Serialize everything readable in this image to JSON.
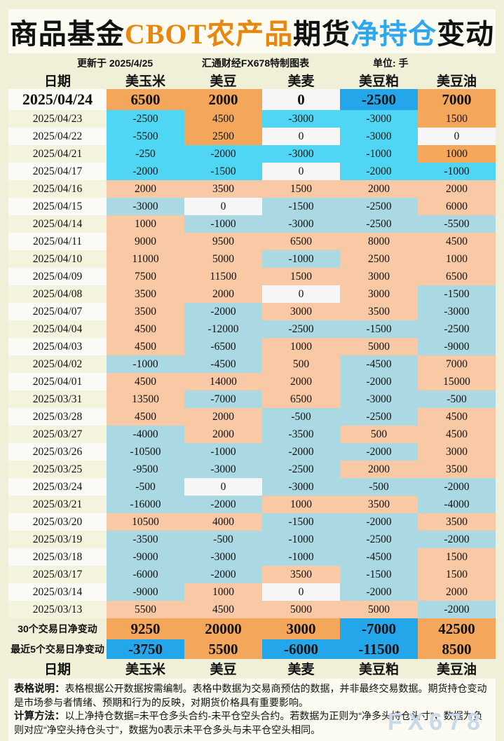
{
  "title": {
    "part1": "商品基金",
    "part2": "CBOT农产品",
    "part3": "期货",
    "part4": "净持仓",
    "part5": "变动"
  },
  "subtitle": {
    "updated": "更新于 2025/4/25",
    "source": "汇通财经FX678特制图表",
    "unit": "单位: 手"
  },
  "watermark": "FX678",
  "colors": {
    "page_bg": "#F0EFD8",
    "panel_bg": "#FBFBF2",
    "title_orange": "#E8860D",
    "title_blue": "#2EA7F2",
    "pos_strong": "#F4A65A",
    "neg_strong": "#23A7EA",
    "neg_bright": "#4FD6F5",
    "pos_soft": "#F8C9A4",
    "neg_soft": "#AAD8E3",
    "zero_bg": "#F6F6F6",
    "date_even": "#FAFAF6",
    "date_odd": "#F3F3DE",
    "watermark": "#C9D9EA"
  },
  "notes": {
    "line1_label": "表格说明：",
    "line1_text": "表格根据公开数据按需编制。表格中数据为交易商预估的数据，并非最终交易数据。期货持仓变动是市场参与者情绪、预期和行为的反映，对期货价格具有重要影响。",
    "line2_label": "计算方法：",
    "line2_text": "以上净持仓数据=未平仓多头合约-未平仓空头合约。若数据为正则为“净多头持仓头寸”，数据为负则对应“净空头持仓头寸”，数据为0表示未平仓多头与未平仓空头相同。"
  },
  "chart_data": {
    "type": "table",
    "title": "商品基金CBOT农产品期货净持仓变动",
    "unit": "手",
    "columns": [
      "日期",
      "美玉米",
      "美豆",
      "美麦",
      "美豆粕",
      "美豆油"
    ],
    "rows": [
      {
        "date": "2025/04/24",
        "values": [
          6500,
          2000,
          0,
          -2500,
          7000
        ]
      },
      {
        "date": "2025/04/23",
        "values": [
          -2500,
          4500,
          -3000,
          -3000,
          1500
        ]
      },
      {
        "date": "2025/04/22",
        "values": [
          -5500,
          2500,
          0,
          -3000,
          0
        ]
      },
      {
        "date": "2025/04/21",
        "values": [
          -250,
          -2000,
          -3000,
          -1000,
          1000
        ]
      },
      {
        "date": "2025/04/17",
        "values": [
          -2000,
          -1500,
          0,
          -2000,
          -1000
        ]
      },
      {
        "date": "2025/04/16",
        "values": [
          2000,
          3500,
          1500,
          2000,
          2000
        ]
      },
      {
        "date": "2025/04/15",
        "values": [
          -3000,
          0,
          -1500,
          -2500,
          6000
        ]
      },
      {
        "date": "2025/04/14",
        "values": [
          1000,
          -1000,
          -3000,
          -2500,
          -5500
        ]
      },
      {
        "date": "2025/04/11",
        "values": [
          9000,
          9500,
          6500,
          8000,
          4500
        ]
      },
      {
        "date": "2025/04/10",
        "values": [
          11000,
          5000,
          -1000,
          2500,
          1000
        ]
      },
      {
        "date": "2025/04/09",
        "values": [
          7500,
          11500,
          1500,
          3000,
          6500
        ]
      },
      {
        "date": "2025/04/08",
        "values": [
          3500,
          2000,
          0,
          3000,
          -1500
        ]
      },
      {
        "date": "2025/04/07",
        "values": [
          3500,
          -2000,
          3000,
          3500,
          -3000
        ]
      },
      {
        "date": "2025/04/04",
        "values": [
          4500,
          -12000,
          -2500,
          -1500,
          -2500
        ]
      },
      {
        "date": "2025/04/03",
        "values": [
          4500,
          -6500,
          1000,
          5000,
          -9000
        ]
      },
      {
        "date": "2025/04/02",
        "values": [
          -1000,
          -4500,
          500,
          -4500,
          7000
        ]
      },
      {
        "date": "2025/04/01",
        "values": [
          4500,
          14000,
          2000,
          -2000,
          15000
        ]
      },
      {
        "date": "2025/03/31",
        "values": [
          13500,
          -7000,
          6500,
          -3000,
          -500
        ]
      },
      {
        "date": "2025/03/28",
        "values": [
          4500,
          2000,
          -500,
          -2500,
          4500
        ]
      },
      {
        "date": "2025/03/27",
        "values": [
          -4000,
          2000,
          -3500,
          500,
          4500
        ]
      },
      {
        "date": "2025/03/26",
        "values": [
          -10500,
          -1000,
          -2000,
          -2000,
          3000
        ]
      },
      {
        "date": "2025/03/25",
        "values": [
          -9500,
          -3000,
          -2500,
          2000,
          3500
        ]
      },
      {
        "date": "2025/03/24",
        "values": [
          -500,
          0,
          -3000,
          -500,
          -2000
        ]
      },
      {
        "date": "2025/03/21",
        "values": [
          -16000,
          -2000,
          1000,
          3500,
          -4000
        ]
      },
      {
        "date": "2025/03/20",
        "values": [
          10500,
          4000,
          -1500,
          -2000,
          3500
        ]
      },
      {
        "date": "2025/03/19",
        "values": [
          -3500,
          -500,
          -1000,
          -2500,
          -2000
        ]
      },
      {
        "date": "2025/03/18",
        "values": [
          -9000,
          -3000,
          -1000,
          -4500,
          1500
        ]
      },
      {
        "date": "2025/03/17",
        "values": [
          -6000,
          -2000,
          3500,
          -1500,
          1500
        ]
      },
      {
        "date": "2025/03/14",
        "values": [
          -9000,
          1000,
          0,
          -2000,
          2000
        ]
      },
      {
        "date": "2025/03/13",
        "values": [
          5500,
          4500,
          5000,
          5000,
          -2000
        ]
      }
    ],
    "summary": [
      {
        "label": "30个交易日净变动",
        "values": [
          9250,
          20000,
          3000,
          -7000,
          42500
        ]
      },
      {
        "label": "最近5个交易日净变动",
        "values": [
          -3750,
          5500,
          -6000,
          -11500,
          8500
        ]
      }
    ]
  }
}
